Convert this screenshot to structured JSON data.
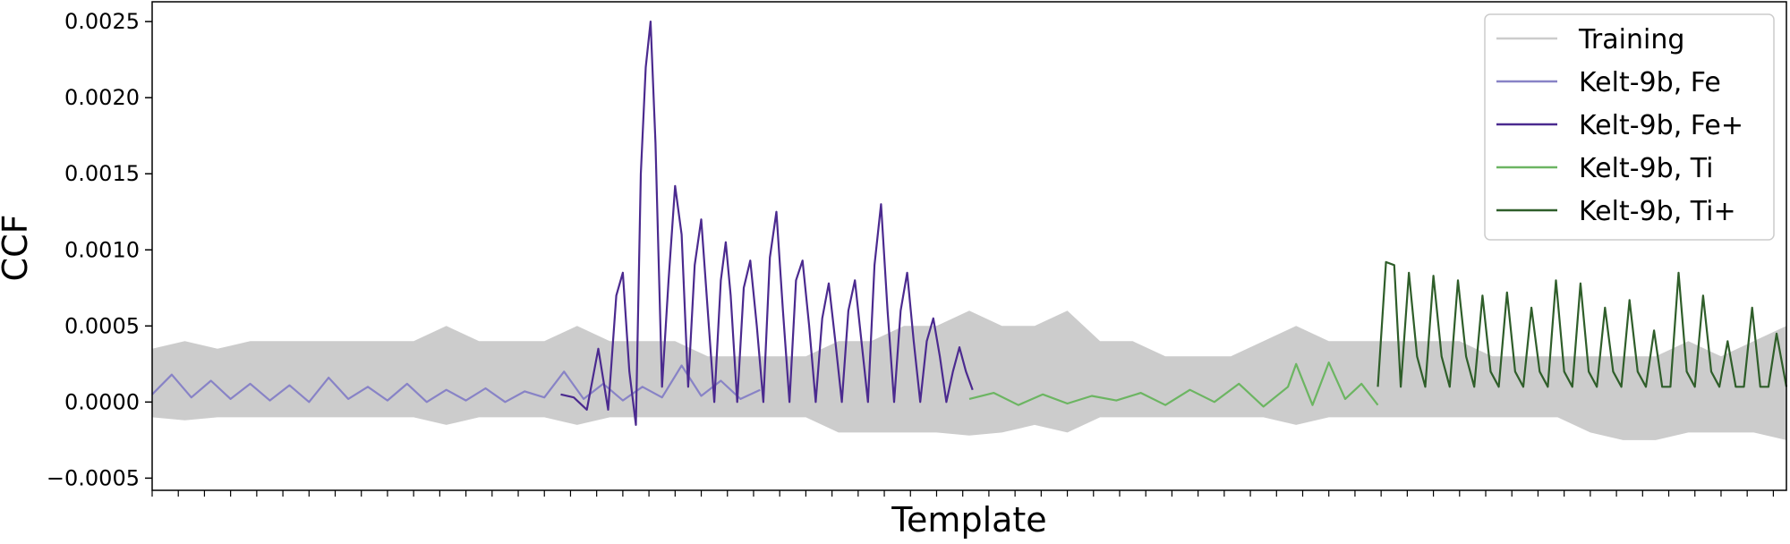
{
  "chart_data": {
    "type": "line",
    "title": "",
    "xlabel": "Template",
    "ylabel": "CCF",
    "xlim": [
      0,
      100
    ],
    "ylim": [
      -0.00058,
      0.00263
    ],
    "yticks": [
      -0.0005,
      0.0,
      0.0005,
      0.001,
      0.0015,
      0.002,
      0.0025
    ],
    "ytick_labels": [
      "−0.0005",
      "0.0000",
      "0.0005",
      "0.0010",
      "0.0015",
      "0.0020",
      "0.0025"
    ],
    "x_tick_labels_shown": false,
    "grid": false,
    "legend_position": "top-right",
    "series": [
      {
        "name": "Training",
        "color": "#cccccc",
        "kind": "band",
        "x": [
          0,
          2,
          4,
          6,
          8,
          10,
          12,
          14,
          16,
          18,
          20,
          22,
          24,
          26,
          28,
          30,
          32,
          34,
          36,
          38,
          40,
          42,
          44,
          46,
          48,
          50,
          52,
          54,
          56,
          58,
          60,
          62,
          64,
          66,
          68,
          70,
          72,
          74,
          76,
          78,
          80,
          82,
          84,
          86,
          88,
          90,
          92,
          94,
          96,
          98,
          100
        ],
        "upper": [
          0.00035,
          0.0004,
          0.00035,
          0.0004,
          0.0004,
          0.0004,
          0.0004,
          0.0004,
          0.0004,
          0.0005,
          0.0004,
          0.0004,
          0.0004,
          0.0005,
          0.0004,
          0.0004,
          0.0004,
          0.0003,
          0.0003,
          0.0003,
          0.0003,
          0.0004,
          0.0004,
          0.0005,
          0.0005,
          0.0006,
          0.0005,
          0.0005,
          0.0006,
          0.0004,
          0.0004,
          0.0003,
          0.0003,
          0.0003,
          0.0004,
          0.0005,
          0.0004,
          0.0004,
          0.0004,
          0.0004,
          0.0004,
          0.0003,
          0.0003,
          0.0003,
          0.0003,
          0.0003,
          0.0003,
          0.0004,
          0.0003,
          0.0004,
          0.0005
        ],
        "lower": [
          -0.0001,
          -0.00012,
          -0.0001,
          -0.0001,
          -0.0001,
          -0.0001,
          -0.0001,
          -0.0001,
          -0.0001,
          -0.00015,
          -0.0001,
          -0.0001,
          -0.0001,
          -0.00015,
          -0.0001,
          -0.0001,
          -0.0001,
          -0.0001,
          -0.0001,
          -0.0001,
          -0.0001,
          -0.0002,
          -0.0002,
          -0.0002,
          -0.0002,
          -0.00022,
          -0.0002,
          -0.00015,
          -0.0002,
          -0.0001,
          -0.0001,
          -0.0001,
          -0.0001,
          -0.0001,
          -0.0001,
          -0.00015,
          -0.0001,
          -0.0001,
          -0.0001,
          -0.0001,
          -0.0001,
          -0.0001,
          -0.0001,
          -0.0001,
          -0.0002,
          -0.00025,
          -0.00025,
          -0.0002,
          -0.0002,
          -0.0002,
          -0.00025
        ]
      },
      {
        "name": "Kelt-9b, Fe",
        "color": "#8883c6",
        "x": [
          0,
          1.2,
          2.4,
          3.6,
          4.8,
          6.0,
          7.2,
          8.4,
          9.6,
          10.8,
          12.0,
          13.2,
          14.4,
          15.6,
          16.8,
          18.0,
          19.2,
          20.4,
          21.6,
          22.8,
          24.0,
          25.2,
          26.4,
          27.6,
          28.8,
          30.0,
          31.2,
          32.4,
          33.6,
          34.8,
          36.0,
          37.2
        ],
        "y": [
          5e-05,
          0.00018,
          3e-05,
          0.00014,
          2e-05,
          0.00012,
          1e-05,
          0.00011,
          0.0,
          0.00016,
          2e-05,
          0.0001,
          1e-05,
          0.00012,
          0.0,
          8e-05,
          1e-05,
          9e-05,
          0.0,
          7e-05,
          3e-05,
          0.0002,
          2e-05,
          0.00012,
          1e-05,
          0.0001,
          3e-05,
          0.00024,
          4e-05,
          0.00014,
          2e-05,
          8e-05
        ]
      },
      {
        "name": "Kelt-9b, Fe+",
        "color": "#4b2a8f",
        "x": [
          25.0,
          25.8,
          26.6,
          27.3,
          27.9,
          28.4,
          28.8,
          29.2,
          29.6,
          29.9,
          30.2,
          30.5,
          30.8,
          31.2,
          31.6,
          32.0,
          32.4,
          32.8,
          33.2,
          33.6,
          34.0,
          34.4,
          34.8,
          35.1,
          35.4,
          35.8,
          36.2,
          36.6,
          37.0,
          37.4,
          37.8,
          38.2,
          38.6,
          39.0,
          39.4,
          39.8,
          40.2,
          40.6,
          41.0,
          41.4,
          41.8,
          42.2,
          42.6,
          43.0,
          43.4,
          43.8,
          44.2,
          44.6,
          45.0,
          45.4,
          45.8,
          46.2,
          46.6,
          47.0,
          47.4,
          47.8,
          48.2,
          48.6,
          49.0,
          49.4,
          49.8,
          50.2
        ],
        "y": [
          5e-05,
          3e-05,
          -5e-05,
          0.00035,
          -5e-05,
          0.0007,
          0.00085,
          0.0002,
          -0.00015,
          0.0015,
          0.0022,
          0.0025,
          0.0017,
          0.0001,
          0.0008,
          0.00142,
          0.0011,
          0.0001,
          0.0009,
          0.0012,
          0.0006,
          0.0,
          0.0008,
          0.00105,
          0.0007,
          0.0,
          0.00075,
          0.00093,
          0.0005,
          0.0,
          0.00095,
          0.00125,
          0.0006,
          0.0,
          0.0008,
          0.00093,
          0.0005,
          0.0,
          0.00055,
          0.00078,
          0.0004,
          0.0,
          0.0006,
          0.0008,
          0.0004,
          0.0,
          0.0009,
          0.0013,
          0.0006,
          0.0,
          0.0006,
          0.00085,
          0.0004,
          0.0,
          0.0004,
          0.00055,
          0.0003,
          0.0,
          0.0002,
          0.00036,
          0.0002,
          8e-05
        ]
      },
      {
        "name": "Kelt-9b, Ti",
        "color": "#6cb562",
        "x": [
          50.0,
          51.5,
          53.0,
          54.5,
          56.0,
          57.5,
          59.0,
          60.5,
          62.0,
          63.5,
          65.0,
          66.5,
          68.0,
          69.5,
          70.0,
          71.0,
          72.0,
          73.0,
          74.0,
          75.0
        ],
        "y": [
          2e-05,
          6e-05,
          -2e-05,
          5e-05,
          -1e-05,
          4e-05,
          1e-05,
          6e-05,
          -2e-05,
          8e-05,
          0.0,
          0.00012,
          -3e-05,
          0.0001,
          0.00025,
          -2e-05,
          0.00026,
          2e-05,
          0.00012,
          -2e-05
        ]
      },
      {
        "name": "Kelt-9b, Ti+",
        "color": "#2f5e2a",
        "x": [
          75.0,
          75.5,
          76.0,
          76.4,
          76.9,
          77.4,
          77.9,
          78.4,
          78.9,
          79.4,
          79.9,
          80.4,
          80.9,
          81.4,
          81.9,
          82.4,
          82.9,
          83.4,
          83.9,
          84.4,
          84.9,
          85.4,
          85.9,
          86.4,
          86.9,
          87.4,
          87.9,
          88.4,
          88.9,
          89.4,
          89.9,
          90.4,
          90.9,
          91.4,
          91.9,
          92.4,
          92.9,
          93.4,
          93.9,
          94.4,
          94.9,
          95.4,
          95.9,
          96.4,
          96.9,
          97.4,
          97.9,
          98.4,
          98.9,
          99.4,
          100.0
        ],
        "y": [
          0.0001,
          0.00092,
          0.0009,
          0.0001,
          0.00085,
          0.0003,
          0.0001,
          0.00083,
          0.0003,
          0.0001,
          0.0008,
          0.0003,
          0.0001,
          0.0007,
          0.0002,
          0.0001,
          0.00072,
          0.0002,
          0.0001,
          0.00062,
          0.0002,
          0.0001,
          0.0008,
          0.0002,
          0.0001,
          0.00078,
          0.0002,
          0.0001,
          0.00062,
          0.0002,
          0.0001,
          0.00067,
          0.0002,
          0.0001,
          0.00047,
          0.0001,
          0.0001,
          0.00085,
          0.0002,
          0.0001,
          0.0007,
          0.0002,
          0.0001,
          0.0004,
          0.0001,
          0.0001,
          0.00062,
          0.0001,
          0.0001,
          0.00045,
          0.0001
        ]
      }
    ]
  }
}
